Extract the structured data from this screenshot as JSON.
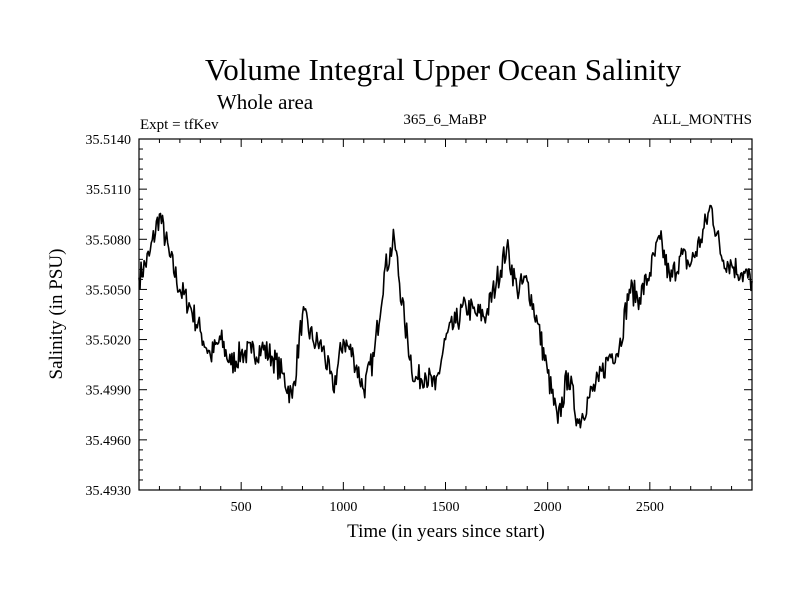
{
  "chart_data": {
    "type": "line",
    "title": "Volume Integral Upper Ocean Salinity",
    "subtitle": "Whole area",
    "left_label": "Expt = tfKev",
    "center_label": "365_6_MaBP",
    "right_label": "ALL_MONTHS",
    "xlabel": "Time (in years since start)",
    "ylabel": "Salinity (in PSU)",
    "xlim": [
      0,
      3000
    ],
    "ylim": [
      35.493,
      35.514
    ],
    "x_ticks": [
      500,
      1000,
      1500,
      2000,
      2500
    ],
    "y_ticks": [
      "35.4930",
      "35.4960",
      "35.4990",
      "35.5020",
      "35.5050",
      "35.5080",
      "35.5110",
      "35.5140"
    ],
    "grid": false,
    "series": [
      {
        "color": "#000000",
        "x": [
          0,
          50,
          100,
          150,
          200,
          250,
          300,
          350,
          400,
          450,
          500,
          550,
          600,
          650,
          700,
          750,
          800,
          850,
          900,
          950,
          1000,
          1050,
          1100,
          1150,
          1200,
          1250,
          1300,
          1350,
          1400,
          1450,
          1500,
          1550,
          1600,
          1650,
          1700,
          1750,
          1800,
          1850,
          1900,
          1950,
          2000,
          2050,
          2100,
          2150,
          2200,
          2250,
          2300,
          2350,
          2400,
          2450,
          2500,
          2550,
          2600,
          2650,
          2700,
          2750,
          2800,
          2850,
          2900,
          2950,
          3000
        ],
        "y": [
          35.5057,
          35.507,
          35.5095,
          35.507,
          35.505,
          35.504,
          35.5025,
          35.501,
          35.502,
          35.5005,
          35.5012,
          35.5012,
          35.5015,
          35.501,
          35.5,
          35.4985,
          35.5035,
          35.502,
          35.5015,
          35.499,
          35.502,
          35.501,
          35.499,
          35.501,
          35.506,
          35.508,
          35.503,
          35.4995,
          35.5,
          35.499,
          35.502,
          35.503,
          35.504,
          35.5035,
          35.5035,
          35.5055,
          35.5075,
          35.505,
          35.5055,
          35.503,
          35.5,
          35.497,
          35.5,
          35.497,
          35.4985,
          35.4995,
          35.501,
          35.5015,
          35.505,
          35.5045,
          35.506,
          35.508,
          35.5055,
          35.507,
          35.5065,
          35.508,
          35.51,
          35.507,
          35.5065,
          35.506,
          35.5055
        ]
      }
    ]
  }
}
